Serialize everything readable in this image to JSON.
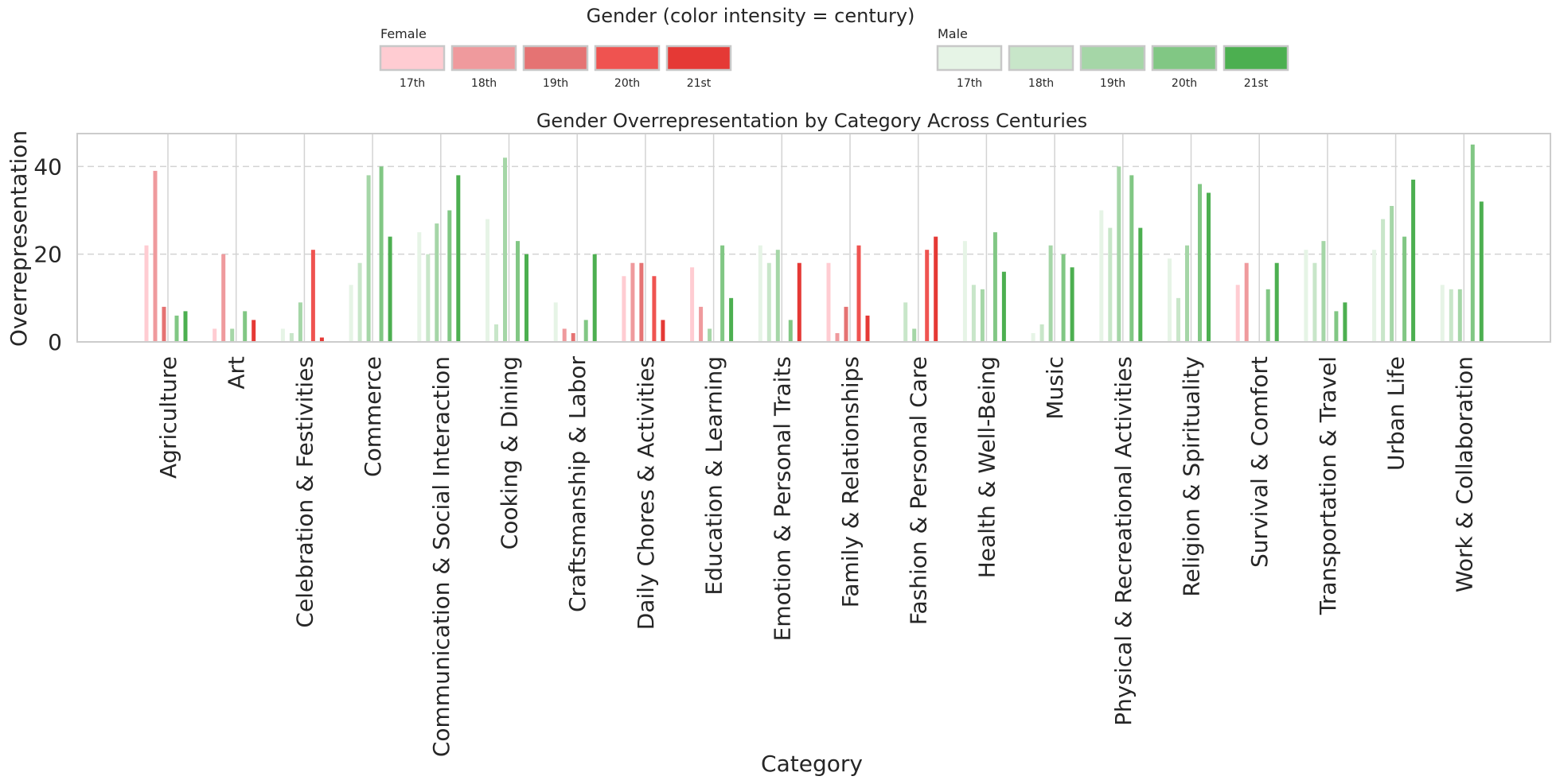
{
  "colors": {
    "female": [
      "#ffccd2",
      "#ef9a9d",
      "#e57373",
      "#ef5350",
      "#e53935"
    ],
    "male": [
      "#e6f4e6",
      "#c8e6c9",
      "#a5d6a7",
      "#81c784",
      "#4caf50"
    ],
    "grid": "#d3d3d3",
    "axis_frame": "#cccccc",
    "text": "#262626"
  },
  "chart_data": {
    "type": "bar",
    "title": "Gender Overrepresentation by Category Across Centuries",
    "xlabel": "Category",
    "ylabel": "Overrepresentation",
    "ylim": [
      0,
      47.5
    ],
    "yticks": [
      0,
      20,
      40
    ],
    "grid": true,
    "legend": {
      "title": "Gender (color intensity = century)",
      "groups": [
        {
          "name": "Female",
          "labels": [
            "17th",
            "18th",
            "19th",
            "20th",
            "21st"
          ]
        },
        {
          "name": "Male",
          "labels": [
            "17th",
            "18th",
            "19th",
            "20th",
            "21st"
          ]
        }
      ]
    },
    "centuries": [
      "17th",
      "18th",
      "19th",
      "20th",
      "21st"
    ],
    "categories": [
      "Agriculture",
      "Art",
      "Celebration & Festivities",
      "Commerce",
      "Communication & Social Interaction",
      "Cooking & Dining",
      "Craftsmanship & Labor",
      "Daily Chores & Activities",
      "Education & Learning",
      "Emotion & Personal Traits",
      "Family & Relationships",
      "Fashion & Personal Care",
      "Health & Well-Being",
      "Music",
      "Physical & Recreational Activities",
      "Religion & Spirituality",
      "Survival & Comfort",
      "Transportation & Travel",
      "Urban Life",
      "Work & Collaboration"
    ],
    "bars": [
      [
        {
          "g": "F",
          "v": 22
        },
        {
          "g": "F",
          "v": 39
        },
        {
          "g": "F",
          "v": 8
        },
        {
          "g": "M",
          "v": 6
        },
        {
          "g": "M",
          "v": 7
        }
      ],
      [
        {
          "g": "F",
          "v": 3
        },
        {
          "g": "F",
          "v": 20
        },
        {
          "g": "M",
          "v": 3
        },
        {
          "g": "M",
          "v": 7
        },
        {
          "g": "F",
          "v": 5
        }
      ],
      [
        {
          "g": "M",
          "v": 3
        },
        {
          "g": "M",
          "v": 2
        },
        {
          "g": "M",
          "v": 9
        },
        {
          "g": "F",
          "v": 21
        },
        {
          "g": "F",
          "v": 1
        }
      ],
      [
        {
          "g": "M",
          "v": 13
        },
        {
          "g": "M",
          "v": 18
        },
        {
          "g": "M",
          "v": 38
        },
        {
          "g": "M",
          "v": 40
        },
        {
          "g": "M",
          "v": 24
        }
      ],
      [
        {
          "g": "M",
          "v": 25
        },
        {
          "g": "M",
          "v": 20
        },
        {
          "g": "M",
          "v": 27
        },
        {
          "g": "M",
          "v": 30
        },
        {
          "g": "M",
          "v": 38
        }
      ],
      [
        {
          "g": "M",
          "v": 28
        },
        {
          "g": "M",
          "v": 4
        },
        {
          "g": "M",
          "v": 42
        },
        {
          "g": "M",
          "v": 23
        },
        {
          "g": "M",
          "v": 20
        }
      ],
      [
        {
          "g": "M",
          "v": 9
        },
        {
          "g": "F",
          "v": 3
        },
        {
          "g": "F",
          "v": 2
        },
        {
          "g": "M",
          "v": 5
        },
        {
          "g": "M",
          "v": 20
        }
      ],
      [
        {
          "g": "F",
          "v": 15
        },
        {
          "g": "F",
          "v": 18
        },
        {
          "g": "F",
          "v": 18
        },
        {
          "g": "F",
          "v": 15
        },
        {
          "g": "F",
          "v": 5
        }
      ],
      [
        {
          "g": "F",
          "v": 17
        },
        {
          "g": "F",
          "v": 8
        },
        {
          "g": "M",
          "v": 3
        },
        {
          "g": "M",
          "v": 22
        },
        {
          "g": "M",
          "v": 10
        }
      ],
      [
        {
          "g": "M",
          "v": 22
        },
        {
          "g": "M",
          "v": 18
        },
        {
          "g": "M",
          "v": 21
        },
        {
          "g": "M",
          "v": 5
        },
        {
          "g": "F",
          "v": 18
        }
      ],
      [
        {
          "g": "F",
          "v": 18
        },
        {
          "g": "F",
          "v": 2
        },
        {
          "g": "F",
          "v": 8
        },
        {
          "g": "F",
          "v": 22
        },
        {
          "g": "F",
          "v": 6
        }
      ],
      [
        {
          "g": "M",
          "v": 0
        },
        {
          "g": "M",
          "v": 9
        },
        {
          "g": "M",
          "v": 3
        },
        {
          "g": "F",
          "v": 21
        },
        {
          "g": "F",
          "v": 24
        }
      ],
      [
        {
          "g": "M",
          "v": 23
        },
        {
          "g": "M",
          "v": 13
        },
        {
          "g": "M",
          "v": 12
        },
        {
          "g": "M",
          "v": 25
        },
        {
          "g": "M",
          "v": 16
        }
      ],
      [
        {
          "g": "M",
          "v": 2
        },
        {
          "g": "M",
          "v": 4
        },
        {
          "g": "M",
          "v": 22
        },
        {
          "g": "M",
          "v": 20
        },
        {
          "g": "M",
          "v": 17
        }
      ],
      [
        {
          "g": "M",
          "v": 30
        },
        {
          "g": "M",
          "v": 26
        },
        {
          "g": "M",
          "v": 40
        },
        {
          "g": "M",
          "v": 38
        },
        {
          "g": "M",
          "v": 26
        }
      ],
      [
        {
          "g": "M",
          "v": 19
        },
        {
          "g": "M",
          "v": 10
        },
        {
          "g": "M",
          "v": 22
        },
        {
          "g": "M",
          "v": 36
        },
        {
          "g": "M",
          "v": 34
        }
      ],
      [
        {
          "g": "F",
          "v": 13
        },
        {
          "g": "F",
          "v": 18
        },
        {
          "g": "M",
          "v": 0
        },
        {
          "g": "M",
          "v": 12
        },
        {
          "g": "M",
          "v": 18
        }
      ],
      [
        {
          "g": "M",
          "v": 21
        },
        {
          "g": "M",
          "v": 18
        },
        {
          "g": "M",
          "v": 23
        },
        {
          "g": "M",
          "v": 7
        },
        {
          "g": "M",
          "v": 9
        }
      ],
      [
        {
          "g": "M",
          "v": 21
        },
        {
          "g": "M",
          "v": 28
        },
        {
          "g": "M",
          "v": 31
        },
        {
          "g": "M",
          "v": 24
        },
        {
          "g": "M",
          "v": 37
        }
      ],
      [
        {
          "g": "M",
          "v": 13
        },
        {
          "g": "M",
          "v": 12
        },
        {
          "g": "M",
          "v": 12
        },
        {
          "g": "M",
          "v": 45
        },
        {
          "g": "M",
          "v": 32
        }
      ]
    ]
  }
}
